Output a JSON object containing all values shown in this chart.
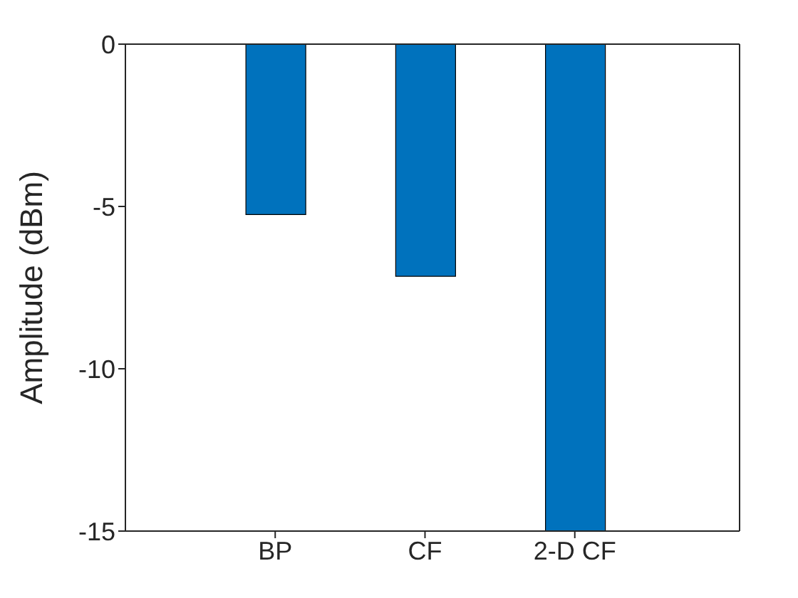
{
  "chart_data": {
    "type": "bar",
    "ylabel": "Amplitude (dBm)",
    "categories": [
      "BP",
      "CF",
      "2-D CF"
    ],
    "values": [
      -5.25,
      -7.15,
      -15
    ],
    "color": "#0072bd",
    "ylim": [
      -15,
      0
    ],
    "yticks": [
      -15,
      -10,
      -5,
      0
    ],
    "grid": false,
    "legend": false
  }
}
